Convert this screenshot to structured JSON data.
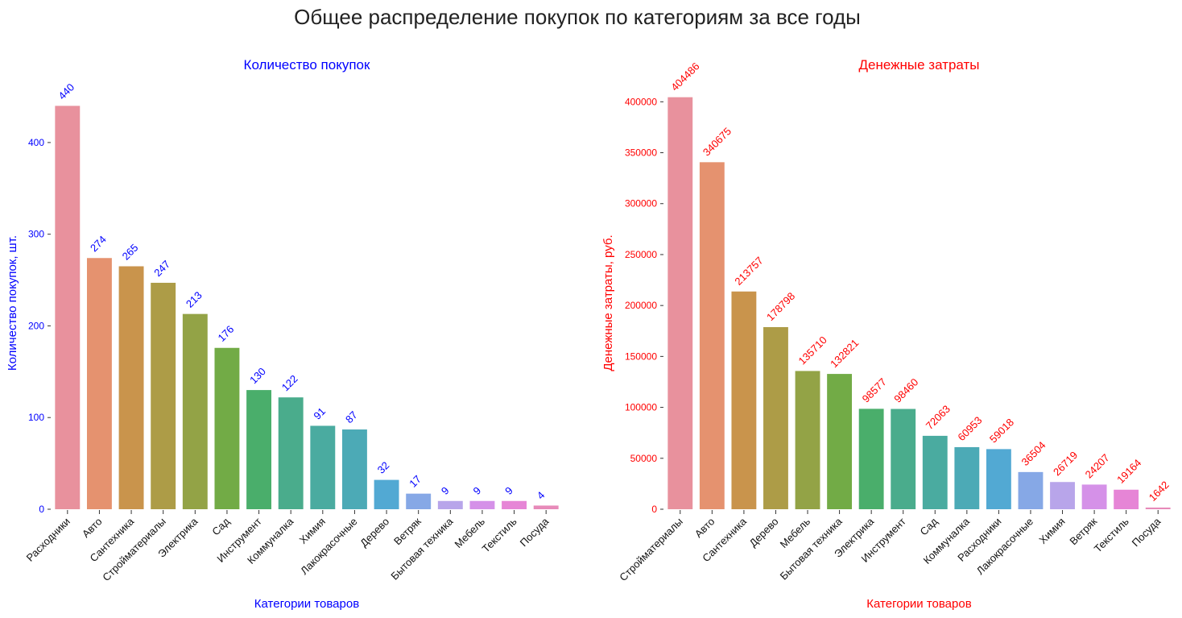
{
  "figure": {
    "title": "Общее распределение покупок по категориям за все годы"
  },
  "palette": [
    "#e8919d",
    "#e5926f",
    "#c9944c",
    "#ad9c47",
    "#93a346",
    "#72ab46",
    "#4aae6b",
    "#4aac8c",
    "#4aaba0",
    "#4caab6",
    "#52a9d3",
    "#86a8e6",
    "#b8a5ea",
    "#d591e8",
    "#e685d6",
    "#e78ab9"
  ],
  "chart_data": [
    {
      "type": "bar",
      "title": "Количество покупок",
      "xlabel": "Категории товаров",
      "ylabel": "Количество покупок, шт.",
      "color": "#0000ff",
      "ylim": [
        0,
        450
      ],
      "yticks": [
        0,
        100,
        200,
        300,
        400
      ],
      "categories": [
        "Расходники",
        "Авто",
        "Сантехника",
        "Стройматериалы",
        "Электрика",
        "Сад",
        "Инструмент",
        "Коммуналка",
        "Химия",
        "Лакокрасочные",
        "Дерево",
        "Ветряк",
        "Бытовая техника",
        "Мебель",
        "Текстиль",
        "Посуда"
      ],
      "values": [
        440,
        274,
        265,
        247,
        213,
        176,
        130,
        122,
        91,
        87,
        32,
        17,
        9,
        9,
        9,
        4
      ]
    },
    {
      "type": "bar",
      "title": "Денежные затраты",
      "xlabel": "Категории товаров",
      "ylabel": "Денежные затраты, руб.",
      "color": "#ff0000",
      "ylim": [
        0,
        405000
      ],
      "yticks": [
        0,
        50000,
        100000,
        150000,
        200000,
        250000,
        300000,
        350000,
        400000
      ],
      "categories": [
        "Стройматериалы",
        "Авто",
        "Сантехника",
        "Дерево",
        "Мебель",
        "Бытовая техника",
        "Электрика",
        "Инструмент",
        "Сад",
        "Коммуналка",
        "Расходники",
        "Лакокрасочные",
        "Химия",
        "Ветряк",
        "Текстиль",
        "Посуда"
      ],
      "values": [
        404486,
        340675,
        213757,
        178798,
        135710,
        132821,
        98577,
        98460,
        72063,
        60953,
        59018,
        36504,
        26719,
        24207,
        19164,
        1642
      ]
    }
  ]
}
